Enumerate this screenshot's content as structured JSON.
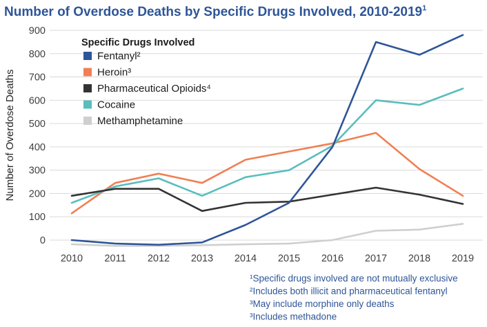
{
  "chart_data": {
    "type": "line",
    "title": "Number of Overdose Deaths by Specific Drugs Involved, 2010-2019",
    "title_superscript": "1",
    "title_color": "#2E5597",
    "xlabel": "",
    "ylabel": "Number of Overdose Deaths",
    "x": [
      "2010",
      "2011",
      "2012",
      "2013",
      "2014",
      "2015",
      "2016",
      "2017",
      "2018",
      "2019"
    ],
    "ylim": [
      -25,
      910
    ],
    "yticks": [
      0,
      100,
      200,
      300,
      400,
      500,
      600,
      700,
      800,
      900
    ],
    "grid": "horizontal",
    "legend_title": "Specific Drugs Involved",
    "legend_position": "top-left",
    "series": [
      {
        "name": "Fentanyl²",
        "color": "#2E5597",
        "values": [
          0,
          -15,
          -20,
          -10,
          65,
          160,
          400,
          850,
          795,
          880
        ]
      },
      {
        "name": "Heroin³",
        "color": "#F07F53",
        "values": [
          115,
          245,
          285,
          245,
          345,
          380,
          415,
          460,
          305,
          190
        ]
      },
      {
        "name": "Pharmaceutical Opioids⁴",
        "color": "#333333",
        "values": [
          190,
          220,
          220,
          125,
          160,
          165,
          195,
          225,
          195,
          155
        ]
      },
      {
        "name": "Cocaine",
        "color": "#5ABDBE",
        "values": [
          160,
          230,
          265,
          190,
          270,
          300,
          405,
          600,
          580,
          650
        ]
      },
      {
        "name": "Methamphetamine",
        "color": "#CFCFCF",
        "values": [
          -18,
          -25,
          -25,
          -22,
          -18,
          -15,
          0,
          40,
          45,
          70
        ]
      }
    ],
    "footnotes": [
      "¹Specific drugs involved are not mutually exclusive",
      "²Includes both illicit and pharmaceutical fentanyl",
      "³May include morphine only deaths",
      "³Includes methadone"
    ],
    "footnote_color": "#2E5597",
    "grid_color": "#D9D9D9"
  }
}
